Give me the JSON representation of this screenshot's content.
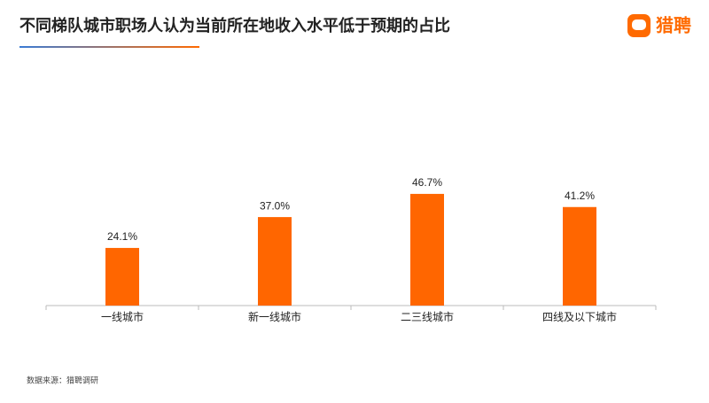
{
  "chart_data": {
    "type": "bar",
    "title": "不同梯队城市职场人认为当前所在地收入水平低于预期的占比",
    "categories": [
      "一线城市",
      "新一线城市",
      "二三线城市",
      "四线及以下城市"
    ],
    "values": [
      24.1,
      37.0,
      46.7,
      41.2
    ],
    "value_labels": [
      "24.1%",
      "37.0%",
      "46.7%",
      "41.2%"
    ],
    "color": "#ff6600",
    "source": "数据来源：猎聘调研",
    "brand": "猎聘"
  }
}
